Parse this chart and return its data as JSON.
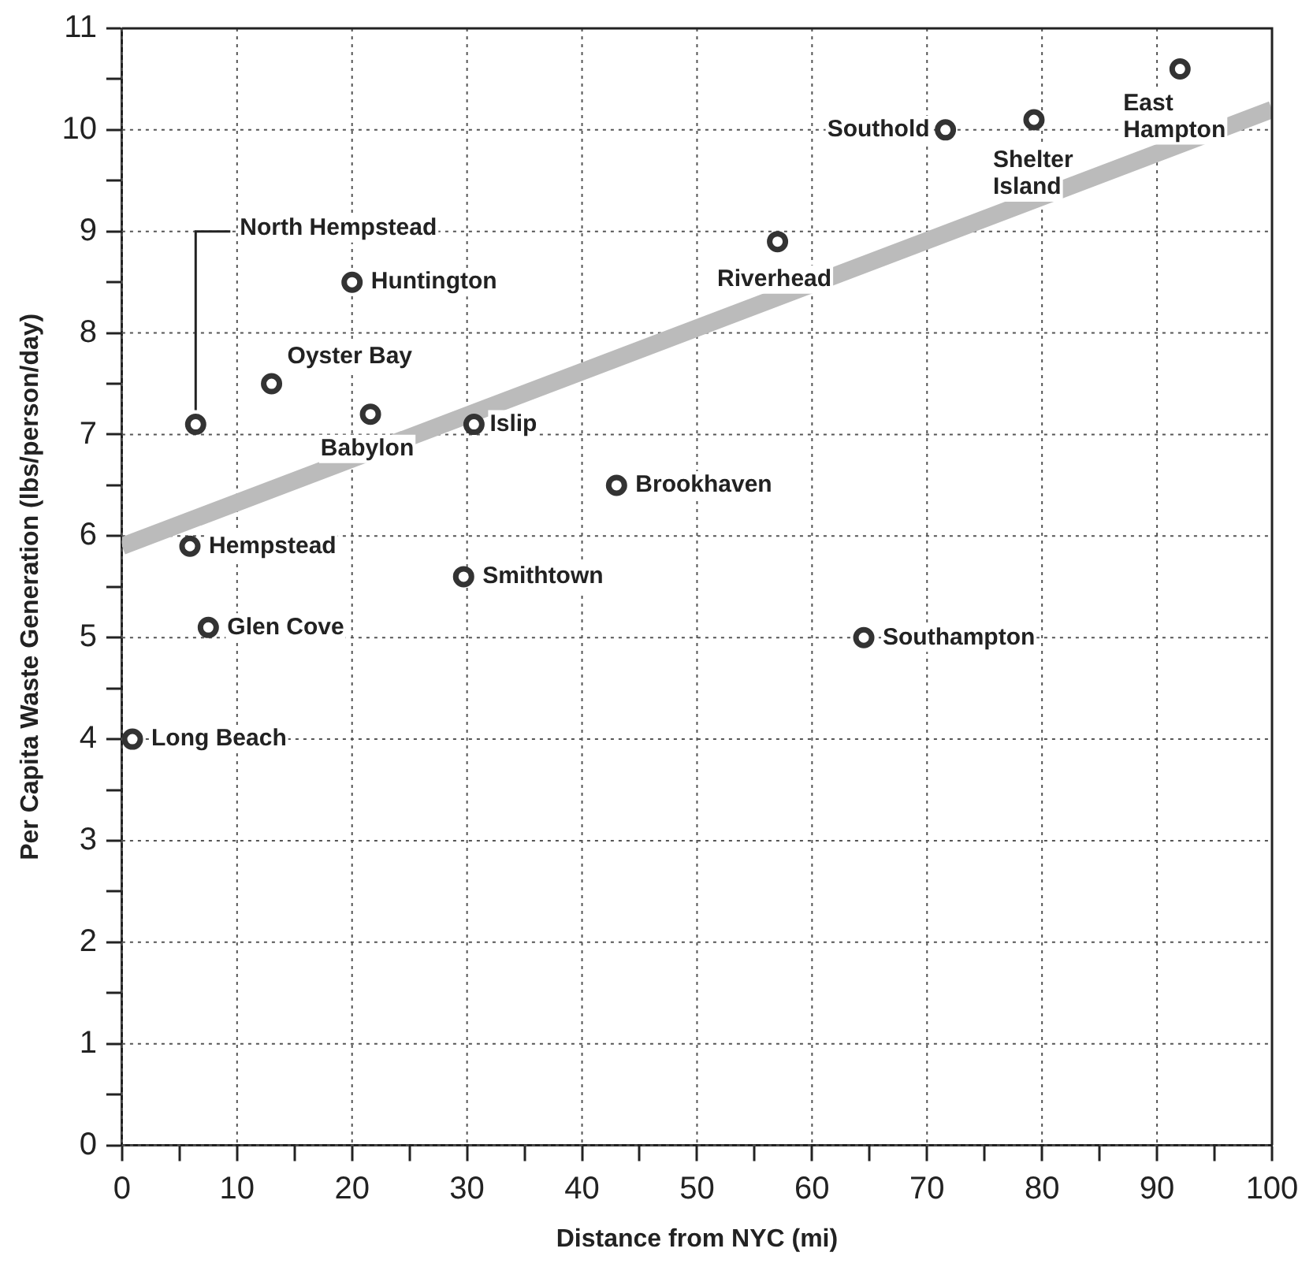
{
  "chart_data": {
    "type": "scatter",
    "xlabel": "Distance from NYC (mi)",
    "ylabel": "Per Capita Waste Generation (lbs/person/day)",
    "series": [
      {
        "color": "#333333",
        "x": [
          6.4,
          20,
          13,
          21.6,
          30.6,
          5.9,
          29.7,
          7.5,
          0.9,
          43,
          64.5,
          57,
          71.6,
          79.3,
          92
        ],
        "values": [
          7.1,
          8.5,
          7.5,
          7.2,
          7.1,
          5.9,
          5.6,
          5.1,
          4.0,
          6.5,
          5.0,
          8.9,
          10.0,
          10.1,
          10.6
        ]
      },
      {
        "type": "line",
        "color": "#bbbbbb",
        "x": [
          0,
          100
        ],
        "values": [
          5.9,
          10.2
        ],
        "marker": "none"
      }
    ],
    "annotations": [
      {
        "text": "North Hempstead",
        "x": 6.4,
        "y": 7.1
      },
      {
        "text": "Huntington",
        "x": 20,
        "y": 8.5
      },
      {
        "text": "Oyster Bay",
        "x": 13,
        "y": 7.5
      },
      {
        "text": "Babylon",
        "x": 21.6,
        "y": 7.2
      },
      {
        "text": "Islip",
        "x": 30.6,
        "y": 7.1
      },
      {
        "text": "Hempstead",
        "x": 5.9,
        "y": 5.9
      },
      {
        "text": "Smithtown",
        "x": 29.7,
        "y": 5.6
      },
      {
        "text": "Glen Cove",
        "x": 7.5,
        "y": 5.1
      },
      {
        "text": "Long Beach",
        "x": 0.9,
        "y": 4.0
      },
      {
        "text": "Brookhaven",
        "x": 43,
        "y": 6.5
      },
      {
        "text": "Southampton",
        "x": 64.5,
        "y": 5.0
      },
      {
        "text": "Riverhead",
        "x": 57,
        "y": 8.9
      },
      {
        "text": "Southold",
        "x": 71.6,
        "y": 10.0
      },
      {
        "text": "Shelter Island",
        "x": 79.3,
        "y": 10.1
      },
      {
        "text": "East Hampton",
        "x": 92,
        "y": 10.6
      }
    ],
    "xlim": [
      0,
      100
    ],
    "xticks": [
      0,
      {
        "value": 5,
        "label": null
      },
      10,
      {
        "value": 15,
        "label": null
      },
      20,
      {
        "value": 25,
        "label": null
      },
      30,
      {
        "value": 35,
        "label": null
      },
      40,
      {
        "value": 45,
        "label": null
      },
      50,
      {
        "value": 55,
        "label": null
      },
      60,
      {
        "value": 65,
        "label": null
      },
      70,
      {
        "value": 75,
        "label": null
      },
      80,
      {
        "value": 85,
        "label": null
      },
      90,
      {
        "value": 95,
        "label": null
      },
      100
    ],
    "ylim": [
      0,
      11
    ],
    "yticks": [
      0,
      {
        "value": 0.5,
        "label": null
      },
      1,
      {
        "value": 1.5,
        "label": null
      },
      2,
      {
        "value": 2.5,
        "label": null
      },
      3,
      {
        "value": 3.5,
        "label": null
      },
      4,
      {
        "value": 4.5,
        "label": null
      },
      5,
      {
        "value": 5.5,
        "label": null
      },
      6,
      {
        "value": 6.5,
        "label": null
      },
      7,
      {
        "value": 7.5,
        "label": null
      },
      8,
      {
        "value": 8.5,
        "label": null
      },
      9,
      {
        "value": 9.5,
        "label": null
      },
      10,
      {
        "value": 10.5,
        "label": null
      },
      11
    ],
    "grid": true,
    "marker": "circle",
    "legend": false
  }
}
